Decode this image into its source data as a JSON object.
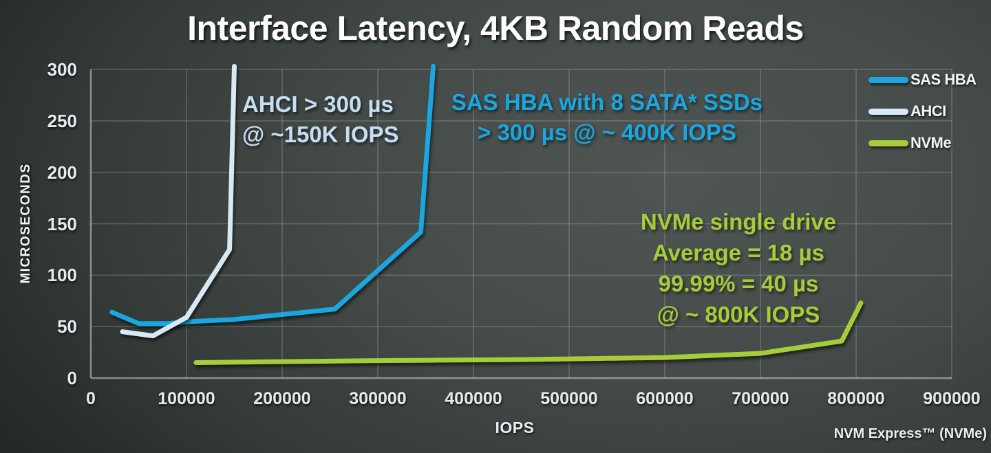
{
  "title": "Interface Latency, 4KB Random Reads",
  "footer_brand": "NVM Express™ (NVMe)",
  "colors": {
    "sas_hba": "#1aa7e0",
    "ahci": "#d7e9f6",
    "nvme": "#a6cd39",
    "ahci_annotation_text": "#c6def1",
    "text": "#f2f6f5",
    "background_dark": "#0a0c0b",
    "background_light": "#4f5654"
  },
  "chart_data": {
    "type": "line",
    "title": "Interface Latency, 4KB Random Reads",
    "xlabel": "IOPS",
    "ylabel": "MICROSECONDS",
    "xlim": [
      0,
      900000
    ],
    "ylim": [
      0,
      300
    ],
    "x_ticks": [
      0,
      100000,
      200000,
      300000,
      400000,
      500000,
      600000,
      700000,
      800000,
      900000
    ],
    "y_ticks": [
      0,
      50,
      100,
      150,
      200,
      250,
      300
    ],
    "grid": true,
    "legend_position": "top-right",
    "series": [
      {
        "name": "SAS HBA",
        "color": "#1aa7e0",
        "points": [
          [
            22000,
            64
          ],
          [
            50000,
            53
          ],
          [
            80000,
            53
          ],
          [
            105000,
            55
          ],
          [
            150000,
            57
          ],
          [
            255000,
            67
          ],
          [
            345000,
            142
          ],
          [
            358000,
            303
          ]
        ]
      },
      {
        "name": "AHCI",
        "color": "#d7e9f6",
        "points": [
          [
            33000,
            45
          ],
          [
            65000,
            41
          ],
          [
            100000,
            59
          ],
          [
            145000,
            125
          ],
          [
            150000,
            303
          ]
        ]
      },
      {
        "name": "NVMe",
        "color": "#a6cd39",
        "points": [
          [
            110000,
            15
          ],
          [
            200000,
            16
          ],
          [
            300000,
            17
          ],
          [
            450000,
            18
          ],
          [
            600000,
            20
          ],
          [
            700000,
            24
          ],
          [
            785000,
            36
          ],
          [
            805000,
            73
          ]
        ]
      }
    ]
  },
  "annotations": {
    "ahci": {
      "color": "#c6def1",
      "lines": [
        "AHCI > 300 µs",
        "@ ~150K IOPS"
      ]
    },
    "sas": {
      "color": "#1aa7e0",
      "lines": [
        "SAS HBA with 8 SATA* SSDs",
        "> 300 µs @ ~ 400K IOPS"
      ]
    },
    "nvme": {
      "color": "#a6cd39",
      "lines": [
        "NVMe single drive",
        "Average = 18 µs",
        "99.99% = 40 µs",
        "@ ~ 800K IOPS"
      ]
    }
  }
}
